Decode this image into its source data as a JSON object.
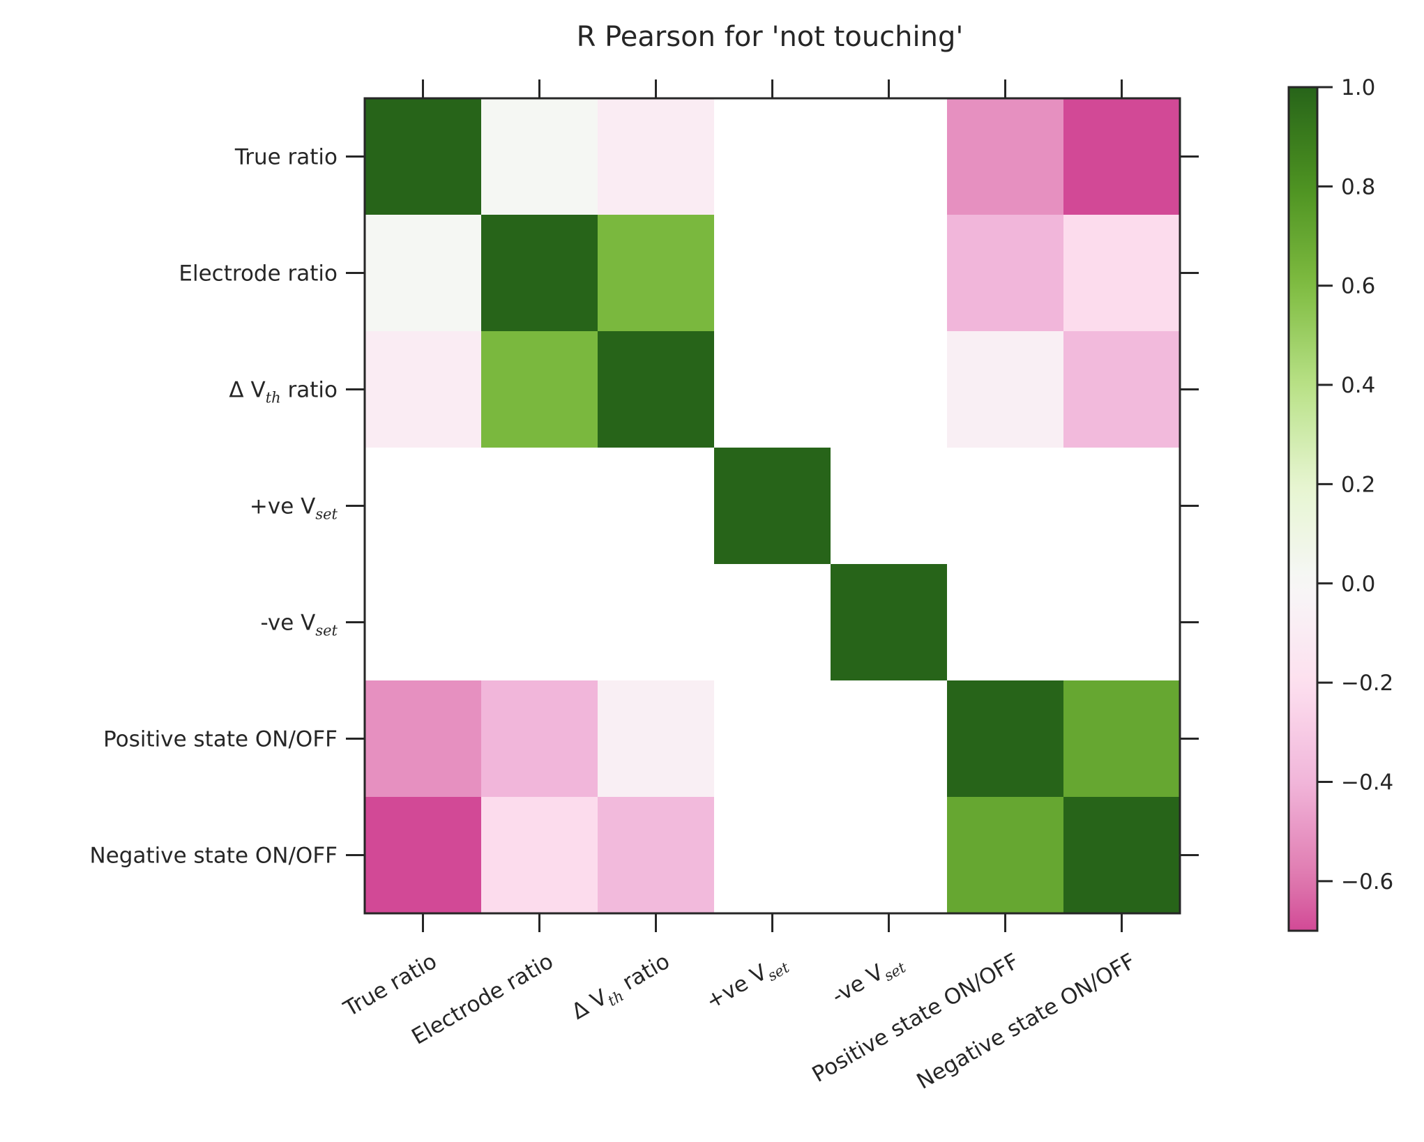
{
  "chart_data": {
    "type": "heatmap",
    "title": "R Pearson for 'not touching'",
    "xlabel": "",
    "ylabel": "",
    "labels": [
      {
        "text": "True ratio",
        "sub": ""
      },
      {
        "text": "Electrode ratio",
        "sub": ""
      },
      {
        "text": "Δ V",
        "sub": "th",
        "suffix": " ratio"
      },
      {
        "text": "+ve V",
        "sub": "set",
        "suffix": ""
      },
      {
        "text": "-ve V",
        "sub": "set",
        "suffix": ""
      },
      {
        "text": "Positive state ON/OFF",
        "sub": ""
      },
      {
        "text": "Negative state ON/OFF",
        "sub": ""
      }
    ],
    "matrix": [
      [
        1.0,
        0.02,
        -0.1,
        null,
        null,
        -0.52,
        -0.7
      ],
      [
        0.02,
        1.0,
        0.62,
        null,
        null,
        -0.4,
        -0.22
      ],
      [
        -0.1,
        0.62,
        1.0,
        null,
        null,
        -0.07,
        -0.38
      ],
      [
        null,
        null,
        null,
        1.0,
        null,
        null,
        null
      ],
      [
        null,
        null,
        null,
        null,
        1.0,
        null,
        null
      ],
      [
        -0.52,
        -0.4,
        -0.07,
        null,
        null,
        1.0,
        0.7
      ],
      [
        -0.7,
        -0.22,
        -0.38,
        null,
        null,
        0.7,
        1.0
      ]
    ],
    "colormap": "PiYG",
    "colorbar": {
      "vmin": -0.7,
      "vmax": 1.0,
      "ticks": [
        1.0,
        0.8,
        0.6,
        0.4,
        0.2,
        0.0,
        -0.2,
        -0.4,
        -0.6
      ],
      "tick_labels": [
        "1.0",
        "0.8",
        "0.6",
        "0.4",
        "0.2",
        "0.0",
        "−0.2",
        "−0.4",
        "−0.6"
      ]
    },
    "x_tick_rotation": 30,
    "grid": false,
    "colors": {
      "pos_max": "#276419",
      "neg_max": "#8e0152",
      "mid": "#f7f7f7",
      "missing": "#ffffff",
      "axis": "#262626"
    }
  }
}
